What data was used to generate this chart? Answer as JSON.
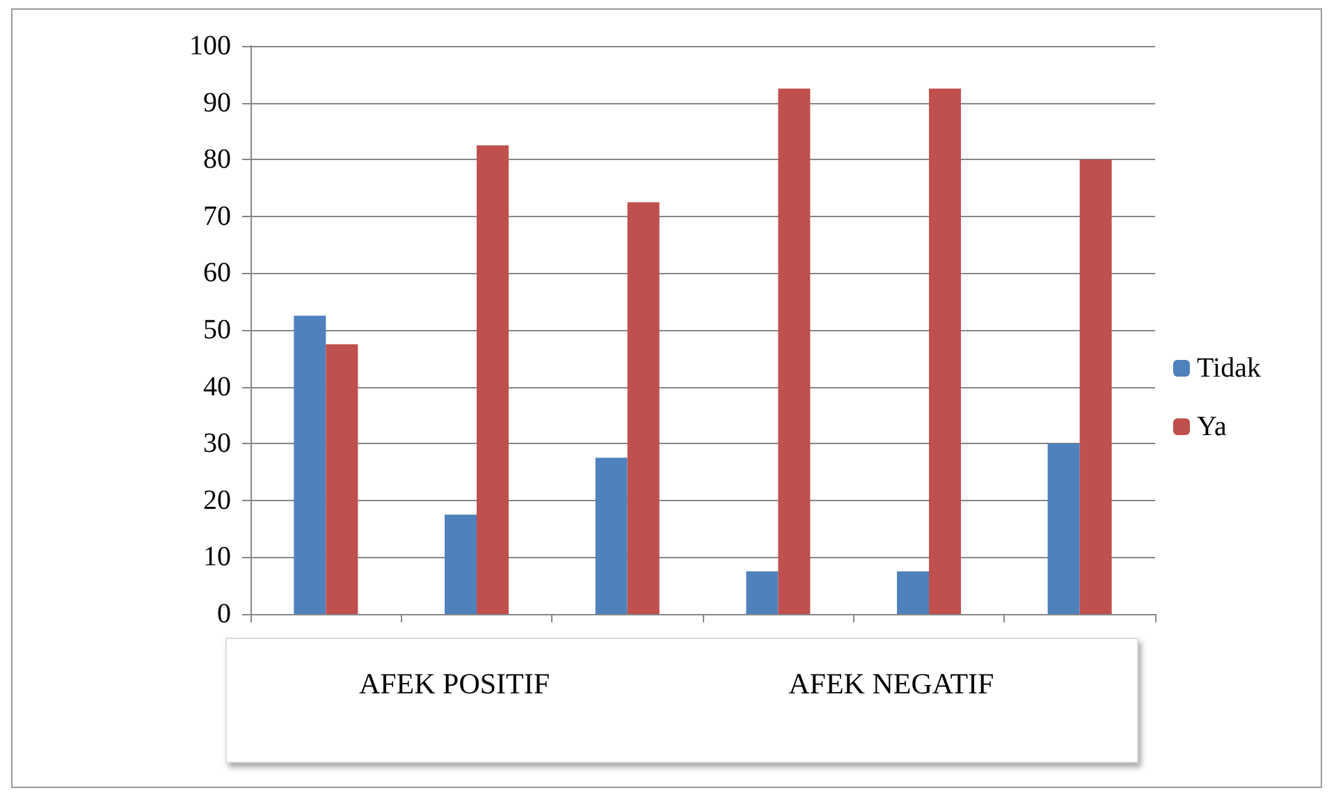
{
  "chart_data": {
    "type": "bar",
    "categories": [
      null,
      null,
      null,
      null,
      null,
      null
    ],
    "series": [
      {
        "name": "Tidak",
        "color": "#4f81bd",
        "values": [
          52.5,
          17.5,
          27.5,
          7.5,
          7.5,
          30
        ]
      },
      {
        "name": "Ya",
        "color": "#c0504d",
        "values": [
          47.5,
          82.5,
          72.5,
          92.5,
          92.5,
          80
        ]
      }
    ],
    "ylim": [
      0,
      100
    ],
    "yticks": [
      0,
      10,
      20,
      30,
      40,
      50,
      60,
      70,
      80,
      90,
      100
    ],
    "grid": "y",
    "legend": "right",
    "annotations": [
      "AFEK POSITIF",
      "AFEK NEGATIF"
    ]
  }
}
